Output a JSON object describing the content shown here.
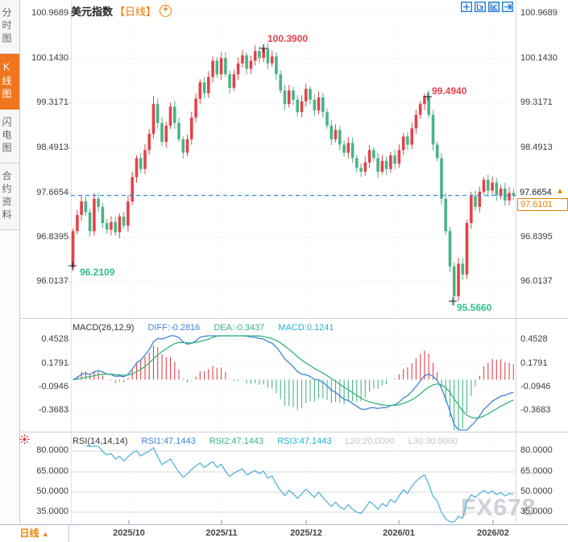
{
  "title": {
    "symbol": "美元指数",
    "period_tag": "【日线】",
    "plus_glyph": "+"
  },
  "sidebar": {
    "tabs": [
      {
        "label": "分时图",
        "active": false
      },
      {
        "label": "K线图",
        "active": true
      },
      {
        "label": "闪电图",
        "active": false
      },
      {
        "label": "合约资料",
        "active": false
      }
    ]
  },
  "price_panel": {
    "axis_labels": [
      "100.9689",
      "100.1430",
      "99.3171",
      "98.4913",
      "97.6654",
      "96.8395",
      "96.0137"
    ],
    "annotations": {
      "high1": "100.3900",
      "high2": "99.4940",
      "low1": "96.2109",
      "low2": "95.5660"
    },
    "axis_current": "97.6654",
    "current_price": "97.6101",
    "latest_arrow": "▲"
  },
  "macd_panel": {
    "header": {
      "name": "MACD(26,12,9)",
      "diff": "DIFF:-0.2816",
      "dea": "DEA:-0.3437",
      "macd": "MACD:0.1241"
    },
    "axis_labels": [
      "0.4528",
      "0.1791",
      "-0.0946",
      "-0.3683"
    ]
  },
  "rsi_panel": {
    "header": {
      "name": "RSI(14,14,14)",
      "rsi1": "RSI1:47.1443",
      "rsi2": "RSI2:47.1443",
      "rsi3": "RSI3:47.1443",
      "l20": "L20:20.0000",
      "l30": "L30:30.0000"
    },
    "axis_labels": [
      "80.0000",
      "65.0000",
      "50.0000",
      "35.0000"
    ]
  },
  "bottom_bar": {
    "period_label": "日线",
    "arrow": "▲",
    "x_labels": [
      "2025/10",
      "2025/11",
      "2025/12",
      "2026/01",
      "2026/02"
    ]
  },
  "watermark": "FX678",
  "colors": {
    "up": "#e2434b",
    "down": "#4bb385",
    "annot_red": "#e2434b",
    "annot_green": "#2fbe8f",
    "dashed_line": "#1e7ce0",
    "orange": "#f08000",
    "diff_line": "#3f83d8",
    "dea_line": "#35b57c",
    "rsi_line": "#56b4d8",
    "toolbar_blue": "#1a75cf"
  },
  "chart_data": [
    {
      "type": "candlestick",
      "title": "美元指数 日线 (USD Index daily)",
      "x_axis_months": [
        "2025/10",
        "2025/11",
        "2025/12",
        "2026/01",
        "2026/02"
      ],
      "y_ticks": [
        100.9689,
        100.143,
        99.3171,
        98.4913,
        97.6654,
        96.8395,
        96.0137
      ],
      "ylim": [
        95.39,
        101.05
      ],
      "first_open": 96.28,
      "closes": [
        96.95,
        97.25,
        97.5,
        97.3,
        96.95,
        97.55,
        97.4,
        97.1,
        96.98,
        97.12,
        96.93,
        97.22,
        97.05,
        97.5,
        97.95,
        98.3,
        98.1,
        98.45,
        98.75,
        99.3,
        98.95,
        98.6,
        98.9,
        99.25,
        98.95,
        98.65,
        98.4,
        98.65,
        99.05,
        99.4,
        99.7,
        99.5,
        99.8,
        100.1,
        99.85,
        100.15,
        99.85,
        99.6,
        99.85,
        100.05,
        100.2,
        99.95,
        100.1,
        100.28,
        100.15,
        100.32,
        100.05,
        100.18,
        99.85,
        99.55,
        99.3,
        99.55,
        99.38,
        99.15,
        99.35,
        99.58,
        99.38,
        99.18,
        99.42,
        99.15,
        98.9,
        98.65,
        98.82,
        98.55,
        98.4,
        98.58,
        98.3,
        98.12,
        98.05,
        98.22,
        98.45,
        98.3,
        98.05,
        98.25,
        98.1,
        98.35,
        98.2,
        98.45,
        98.7,
        98.55,
        98.85,
        99.1,
        99.3,
        99.45,
        99.1,
        98.55,
        98.3,
        97.55,
        96.95,
        96.3,
        95.75,
        96.35,
        96.15,
        97.1,
        97.6,
        97.4,
        97.68,
        97.9,
        97.7,
        97.85,
        97.62,
        97.74,
        97.52,
        97.66,
        97.61
      ],
      "extremes": {
        "0": {
          "l": 96.2109
        },
        "19": {
          "h": 99.45
        },
        "45": {
          "h": 100.39
        },
        "83": {
          "h": 99.494
        },
        "90": {
          "l": 95.566
        }
      },
      "marked_points": {
        "start_low": 96.2109,
        "top_high": 100.39,
        "second_high": 99.494,
        "crash_low": 95.566,
        "last_close": 97.6101
      },
      "current_price_line": 97.6101
    },
    {
      "type": "bar+line",
      "name": "MACD(26,12,9)",
      "derived_from": "closes (DIFF=EMA12-EMA26, DEA=EMA9(DIFF), MACD=2*(DIFF-DEA))",
      "last_values": {
        "diff": -0.2816,
        "dea": -0.3437,
        "macd": 0.1241
      },
      "y_ticks": [
        0.4528,
        0.1791,
        -0.0946,
        -0.3683
      ]
    },
    {
      "type": "line",
      "name": "RSI(14,14,14)",
      "derived_from": "closes (Wilder RSI-14; RSI1=RSI2=RSI3)",
      "last_values": {
        "rsi1": 47.1443,
        "rsi2": 47.1443,
        "rsi3": 47.1443,
        "l20": 20.0,
        "l30": 30.0
      },
      "y_ticks": [
        80,
        65,
        50,
        35
      ]
    }
  ]
}
